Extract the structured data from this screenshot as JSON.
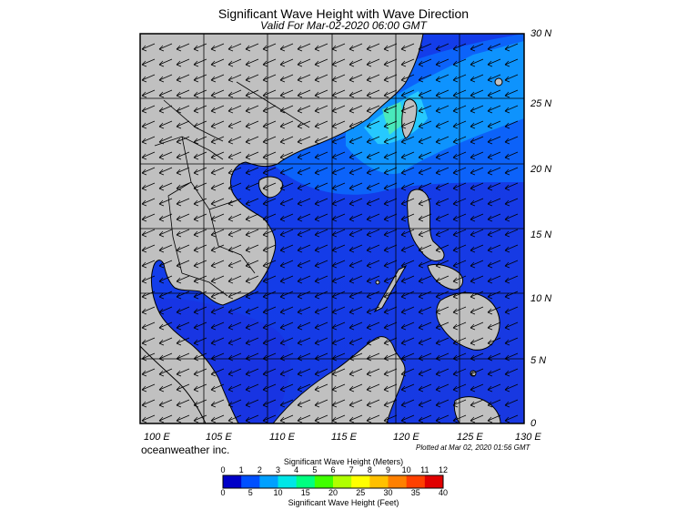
{
  "title": "Significant Wave Height with Wave Direction",
  "subtitle": "Valid For Mar-02-2020 06:00 GMT",
  "lat_labels": [
    "30 N",
    "25 N",
    "20 N",
    "15 N",
    "10 N",
    "5 N",
    "0"
  ],
  "lon_labels": [
    "100 E",
    "105 E",
    "110 E",
    "115 E",
    "120 E",
    "125 E",
    "130 E"
  ],
  "brand": "oceanweather inc.",
  "plotted": "Plotted at Mar 02, 2020 01:56 GMT",
  "colorbar": {
    "meters_title": "Significant Wave Height (Meters)",
    "meters_ticks": [
      "0",
      "1",
      "2",
      "3",
      "4",
      "5",
      "6",
      "7",
      "8",
      "9",
      "10",
      "11",
      "12"
    ],
    "feet_ticks": [
      "0",
      "5",
      "10",
      "15",
      "20",
      "25",
      "30",
      "35",
      "40"
    ],
    "feet_title": "Significant Wave Height (Feet)",
    "colors": [
      "#0000c8",
      "#0050ff",
      "#00a0ff",
      "#00e6e6",
      "#00ff80",
      "#40ff00",
      "#b0ff00",
      "#ffff00",
      "#ffc000",
      "#ff8000",
      "#ff4000",
      "#e00000"
    ]
  },
  "map_colors": {
    "land": "#c0c0c0",
    "sea_low": "#1a3cf0",
    "sea_mid": "#0a78ff",
    "sea_high": "#18c8ff",
    "sea_peak": "#60ff90"
  }
}
